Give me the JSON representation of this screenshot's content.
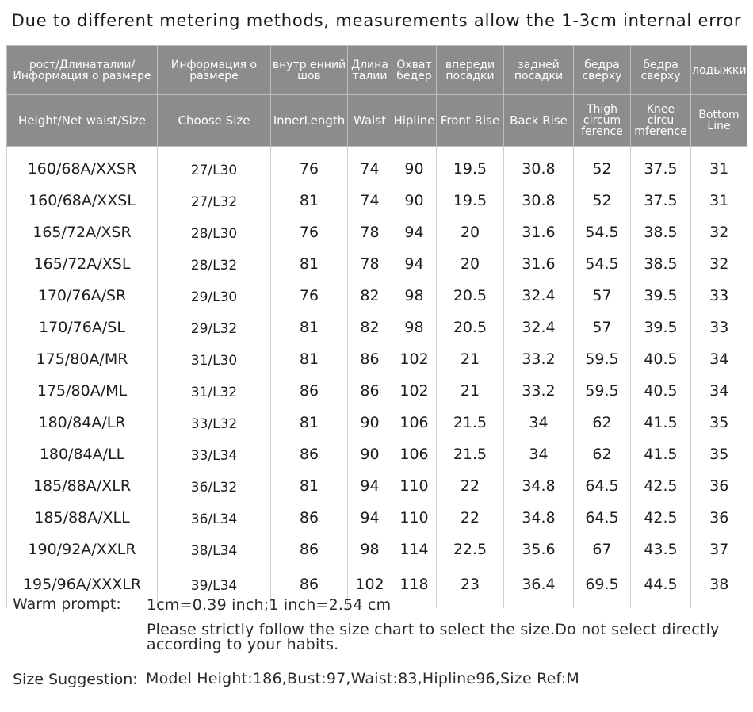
{
  "title": "Due to different metering methods, measurements allow the 1-3cm internal error",
  "table": {
    "headers_ru": [
      "рост/Длинаталии/Информация о размере",
      "Информация о размере",
      "внутр енний шов",
      "Длина талии",
      "Охват бедер",
      "впереди посадки",
      "задней посадки",
      "бедра сверху",
      "бедра сверху",
      "лодыжки"
    ],
    "headers_en": [
      "Height/Net waist/Size",
      "Choose Size",
      "InnerLength",
      "Waist",
      "Hipline",
      "Front Rise",
      "Back Rise",
      "Thigh circum ference",
      "Knee circu mference",
      "Bottom Line"
    ],
    "rows": [
      [
        "160/68A/XXSR",
        "27/L30",
        "76",
        "74",
        "90",
        "19.5",
        "30.8",
        "52",
        "37.5",
        "31"
      ],
      [
        "160/68A/XXSL",
        "27/L32",
        "81",
        "74",
        "90",
        "19.5",
        "30.8",
        "52",
        "37.5",
        "31"
      ],
      [
        "165/72A/XSR",
        "28/L30",
        "76",
        "78",
        "94",
        "20",
        "31.6",
        "54.5",
        "38.5",
        "32"
      ],
      [
        "165/72A/XSL",
        "28/L32",
        "81",
        "78",
        "94",
        "20",
        "31.6",
        "54.5",
        "38.5",
        "32"
      ],
      [
        "170/76A/SR",
        "29/L30",
        "76",
        "82",
        "98",
        "20.5",
        "32.4",
        "57",
        "39.5",
        "33"
      ],
      [
        "170/76A/SL",
        "29/L32",
        "81",
        "82",
        "98",
        "20.5",
        "32.4",
        "57",
        "39.5",
        "33"
      ],
      [
        "175/80A/MR",
        "31/L30",
        "81",
        "86",
        "102",
        "21",
        "33.2",
        "59.5",
        "40.5",
        "34"
      ],
      [
        "175/80A/ML",
        "31/L32",
        "86",
        "86",
        "102",
        "21",
        "33.2",
        "59.5",
        "40.5",
        "34"
      ],
      [
        "180/84A/LR",
        "33/L32",
        "81",
        "90",
        "106",
        "21.5",
        "34",
        "62",
        "41.5",
        "35"
      ],
      [
        "180/84A/LL",
        "33/L34",
        "86",
        "90",
        "106",
        "21.5",
        "34",
        "62",
        "41.5",
        "35"
      ],
      [
        "185/88A/XLR",
        "36/L32",
        "81",
        "94",
        "110",
        "22",
        "34.8",
        "64.5",
        "42.5",
        "36"
      ],
      [
        "185/88A/XLL",
        "36/L34",
        "86",
        "94",
        "110",
        "22",
        "34.8",
        "64.5",
        "42.5",
        "36"
      ],
      [
        "190/92A/XXLR",
        "38/L34",
        "86",
        "98",
        "114",
        "22.5",
        "35.6",
        "67",
        "43.5",
        "37"
      ],
      [
        "195/96A/XXXLR",
        "39/L34",
        "86",
        "102",
        "118",
        "23",
        "36.4",
        "69.5",
        "44.5",
        "38"
      ]
    ]
  },
  "notes": {
    "warm_label": "Warm prompt:",
    "conversion": "1cm=0.39 inch;1 inch=2.54 cm",
    "instruction_line1": "Please strictly follow the size chart  to select the size.Do not select directly",
    "instruction_line2": "according to your habits.",
    "suggestion_label": "Size Suggestion:",
    "suggestion_text": "Model Height:186,Bust:97,Waist:83,Hipline96,Size Ref:M"
  },
  "colors": {
    "header_bg": "#8c8c8c",
    "header_text": "#ffffff",
    "grid_line": "#cfcfcf"
  }
}
